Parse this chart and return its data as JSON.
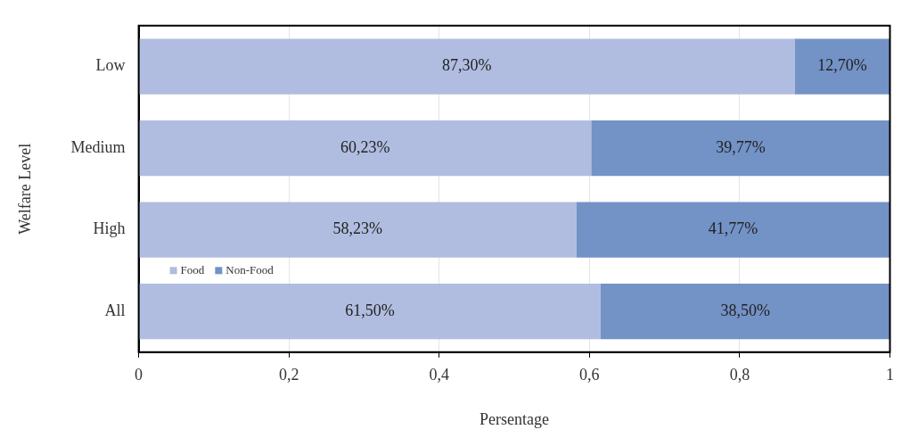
{
  "chart_data": {
    "type": "bar",
    "orientation": "horizontal",
    "stacked": true,
    "xlabel": "Persentage",
    "ylabel": "Welfare Level",
    "categories": [
      "Low",
      "Medium",
      "High",
      "All"
    ],
    "series": [
      {
        "name": "Food",
        "color": "#b0bde0",
        "values": [
          0.873,
          0.6023,
          0.5823,
          0.615
        ],
        "value_labels": [
          "87,30%",
          "60,23%",
          "58,23%",
          "61,50%"
        ]
      },
      {
        "name": "Non-Food",
        "color": "#7392c6",
        "values": [
          0.127,
          0.3977,
          0.4177,
          0.385
        ],
        "value_labels": [
          "12,70%",
          "39,77%",
          "41,77%",
          "38,50%"
        ]
      }
    ],
    "xlim": [
      0,
      1
    ],
    "xticks": [
      0,
      {
        "value": 0.2,
        "label": "0,2"
      },
      {
        "value": 0.4,
        "label": "0,4"
      },
      {
        "value": 0.6,
        "label": "0,6"
      },
      {
        "value": 0.8,
        "label": "0,8"
      },
      1
    ],
    "grid": "x",
    "legend": "left"
  }
}
